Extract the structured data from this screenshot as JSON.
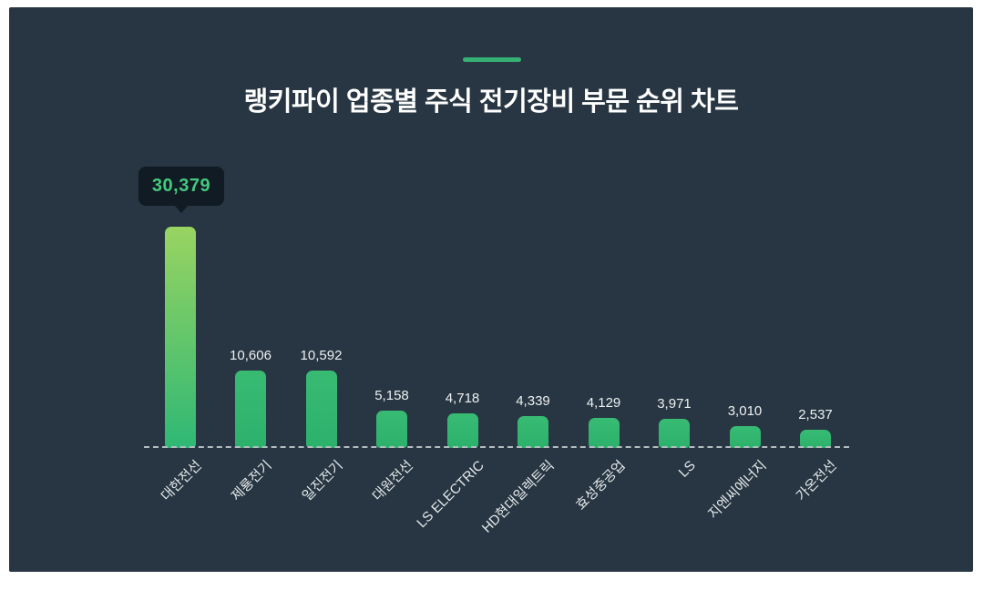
{
  "chart_data": {
    "type": "bar",
    "title": "랭키파이 업종별 주식 전기장비 부문 순위 차트",
    "categories": [
      "대한전선",
      "제룡전기",
      "일진전기",
      "대원전선",
      "LS ELECTRIC",
      "HD현대일렉트릭",
      "효성중공업",
      "LS",
      "지엔씨에너지",
      "가온전선"
    ],
    "values": [
      30379,
      10606,
      10592,
      5158,
      4718,
      4339,
      4129,
      3971,
      3010,
      2537
    ],
    "value_labels": [
      "30,379",
      "10,606",
      "10,592",
      "5,158",
      "4,718",
      "4,339",
      "4,129",
      "3,971",
      "3,010",
      "2,537"
    ],
    "xlabel": "",
    "ylabel": "",
    "ylim": [
      0,
      30379
    ],
    "grid": false,
    "legend": "none",
    "baseline_style": "dashed",
    "category_label_rotation_deg": -45,
    "tooltip": {
      "index": 0,
      "label": "30,379"
    },
    "colors": {
      "panel_background": "#273642",
      "accent_dash": "#36b173",
      "bar": "#2fb571",
      "highlight_bar_gradient_top": "#99d461",
      "highlight_bar_gradient_bottom": "#2eb875",
      "tooltip_background": "#101b24",
      "tooltip_text": "#44ca7e",
      "value_label_text": "#eef1f3",
      "category_label_text": "#e6eaec",
      "baseline": "#b4bcc1",
      "title_text": "#ffffff"
    }
  }
}
